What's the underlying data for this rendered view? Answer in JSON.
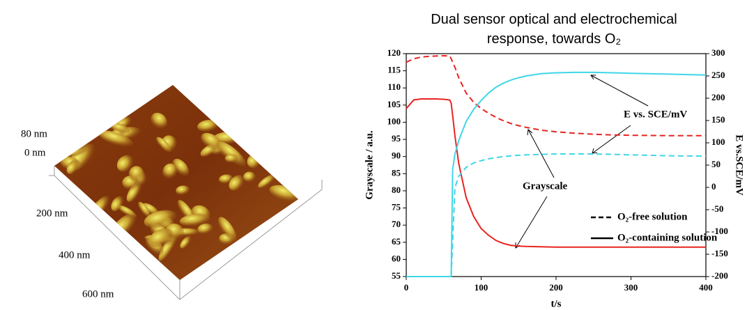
{
  "afm_image": {
    "labels": [
      "80 nm",
      "0 nm",
      "200 nm",
      "400 nm",
      "600 nm"
    ]
  },
  "chart_data": {
    "type": "line",
    "title": "Dual sensor optical and electrochemical response, towards O₂",
    "x_label": "t/s",
    "y_label": "Grayscale / a.u.",
    "y2_label": "E vs.SCE/mV",
    "x": [
      0,
      10,
      20,
      30,
      40,
      50,
      58,
      60,
      62,
      65,
      70,
      80,
      90,
      100,
      110,
      120,
      130,
      140,
      150,
      160,
      180,
      200,
      225,
      250,
      275,
      300,
      350,
      400
    ],
    "series": [
      {
        "color": "#e8231f",
        "linestyle": "dashed",
        "axis": "y",
        "values": [
          117.5,
          118.5,
          119,
          119.2,
          119.3,
          119.4,
          119.3,
          118.5,
          117.5,
          116,
          113,
          108.5,
          105.8,
          104,
          102.6,
          101.4,
          100.4,
          99.6,
          99,
          98.5,
          97.7,
          97.2,
          96.8,
          96.5,
          96.3,
          96.2,
          96.1,
          96.1
        ]
      },
      {
        "color": "#e8231f",
        "linestyle": "solid",
        "axis": "y",
        "values": [
          104,
          106.5,
          106.8,
          106.8,
          106.8,
          106.7,
          106.5,
          105.5,
          102,
          96,
          88,
          78,
          72.5,
          69,
          67,
          65.5,
          64.6,
          64.1,
          63.9,
          63.8,
          63.7,
          63.6,
          63.6,
          63.6,
          63.6,
          63.6,
          63.6,
          63.6
        ]
      },
      {
        "color": "#3fd6e8",
        "linestyle": "dashed",
        "axis": "y2",
        "values": [
          -200,
          -200,
          -200,
          -200,
          -200,
          -200,
          -200,
          -200,
          -120,
          0,
          25,
          45,
          55,
          60,
          64,
          67,
          69,
          71,
          72,
          73,
          74,
          75,
          75,
          75,
          74,
          73,
          71,
          70
        ]
      },
      {
        "color": "#3fd6e8",
        "linestyle": "solid",
        "axis": "y2",
        "values": [
          -200,
          -200,
          -200,
          -200,
          -200,
          -200,
          -200,
          -200,
          40,
          75,
          105,
          148,
          175,
          195,
          212,
          225,
          234,
          241,
          246,
          250,
          255,
          257,
          258,
          258,
          257,
          256,
          254,
          252
        ]
      }
    ],
    "xlim": [
      0,
      400
    ],
    "xticks": [
      0,
      100,
      200,
      300,
      400
    ],
    "ylim": [
      55,
      120
    ],
    "yticks": [
      55,
      60,
      65,
      70,
      75,
      80,
      85,
      90,
      95,
      100,
      105,
      110,
      115,
      120
    ],
    "y2lim": [
      -200,
      300
    ],
    "y2ticks": [
      -200,
      -150,
      -100,
      -50,
      0,
      50,
      100,
      150,
      200,
      250,
      300
    ],
    "annotations": [
      "E vs. SCE/mV",
      "Grayscale"
    ],
    "legend": [
      {
        "label": "O₂-free solution",
        "linestyle": "dashed"
      },
      {
        "label": "O₂-containing solution",
        "linestyle": "solid"
      }
    ]
  }
}
